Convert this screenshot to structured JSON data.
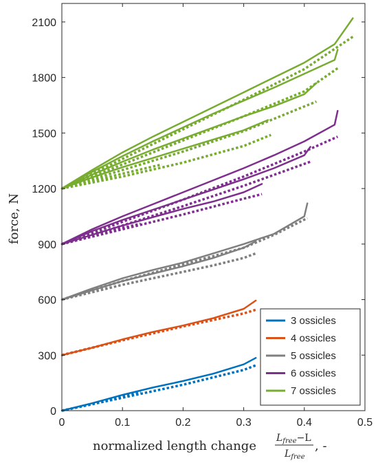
{
  "chart_data": {
    "type": "line",
    "ylabel": "force, N",
    "xlabel_text": "normalized length change",
    "xlabel_frac_num": "L",
    "xlabel_frac_num_sub": "free",
    "xlabel_frac_num_minus": "−L",
    "xlabel_frac_den": "L",
    "xlabel_frac_den_sub": "free",
    "xlabel_suffix": ", -",
    "xlim": [
      0,
      0.5
    ],
    "ylim": [
      0,
      2200
    ],
    "xticks": [
      0,
      0.1,
      0.2,
      0.3,
      0.4,
      0.5
    ],
    "xtick_labels": [
      "0",
      "0.1",
      "0.2",
      "0.3",
      "0.4",
      "0.5"
    ],
    "yticks": [
      0,
      300,
      600,
      900,
      1200,
      1500,
      1800,
      2100
    ],
    "ytick_labels": [
      "0",
      "300",
      "600",
      "900",
      "1200",
      "1500",
      "1800",
      "2100"
    ],
    "legend_position": "bottom-right",
    "series": [
      {
        "name": "3 ossicles",
        "color": "#0072BD",
        "curves": [
          {
            "style": "solid",
            "x": [
              0,
              0.05,
              0.1,
              0.15,
              0.2,
              0.25,
              0.3,
              0.32
            ],
            "y": [
              0,
              40,
              85,
              125,
              160,
              200,
              250,
              285
            ]
          },
          {
            "style": "dotted",
            "x": [
              0,
              0.05,
              0.1,
              0.13
            ],
            "y": [
              0,
              35,
              75,
              100
            ]
          },
          {
            "style": "dotted",
            "x": [
              0,
              0.1,
              0.2,
              0.3,
              0.32
            ],
            "y": [
              0,
              70,
              140,
              220,
              245
            ]
          }
        ]
      },
      {
        "name": "4 ossicles",
        "color": "#D95319",
        "curves": [
          {
            "style": "solid",
            "x": [
              0,
              0.05,
              0.1,
              0.15,
              0.2,
              0.25,
              0.3,
              0.32
            ],
            "y": [
              300,
              340,
              385,
              425,
              460,
              500,
              550,
              595
            ]
          },
          {
            "style": "dotted",
            "x": [
              0,
              0.05,
              0.1,
              0.13
            ],
            "y": [
              300,
              340,
              380,
              405
            ]
          },
          {
            "style": "dotted",
            "x": [
              0,
              0.1,
              0.2,
              0.3,
              0.32
            ],
            "y": [
              300,
              380,
              455,
              525,
              545
            ]
          }
        ]
      },
      {
        "name": "5 ossicles",
        "color": "#7F7F7F",
        "curves": [
          {
            "style": "solid",
            "x": [
              0,
              0.05,
              0.1,
              0.15,
              0.2,
              0.25,
              0.3,
              0.32
            ],
            "y": [
              600,
              650,
              700,
              740,
              780,
              825,
              880,
              915
            ]
          },
          {
            "style": "dotted",
            "x": [
              0,
              0.05,
              0.1,
              0.15,
              0.2,
              0.25,
              0.3,
              0.32
            ],
            "y": [
              600,
              640,
              680,
              715,
              750,
              785,
              825,
              850
            ]
          },
          {
            "style": "solid",
            "x": [
              0,
              0.05,
              0.1,
              0.15,
              0.2,
              0.25,
              0.3,
              0.35,
              0.4,
              0.405
            ],
            "y": [
              600,
              660,
              715,
              760,
              800,
              850,
              900,
              955,
              1050,
              1120
            ]
          },
          {
            "style": "dotted",
            "x": [
              0,
              0.1,
              0.2,
              0.3,
              0.35,
              0.405
            ],
            "y": [
              600,
              700,
              790,
              880,
              950,
              1040
            ]
          }
        ]
      },
      {
        "name": "6 ossicles",
        "color": "#7E2F8E",
        "curves": [
          {
            "style": "solid",
            "x": [
              0,
              0.05,
              0.1,
              0.15,
              0.2,
              0.25,
              0.3,
              0.33
            ],
            "y": [
              900,
              950,
              1000,
              1045,
              1090,
              1130,
              1180,
              1225
            ]
          },
          {
            "style": "dotted",
            "x": [
              0,
              0.1,
              0.2,
              0.3,
              0.33
            ],
            "y": [
              900,
              980,
              1060,
              1145,
              1170
            ]
          },
          {
            "style": "solid",
            "x": [
              0,
              0.05,
              0.1,
              0.15,
              0.2,
              0.25,
              0.3,
              0.35,
              0.4,
              0.41
            ],
            "y": [
              900,
              970,
              1030,
              1085,
              1140,
              1195,
              1250,
              1310,
              1380,
              1425
            ]
          },
          {
            "style": "dotted",
            "x": [
              0,
              0.1,
              0.2,
              0.3,
              0.41
            ],
            "y": [
              900,
              1000,
              1105,
              1215,
              1345
            ]
          },
          {
            "style": "solid",
            "x": [
              0,
              0.05,
              0.1,
              0.15,
              0.2,
              0.25,
              0.3,
              0.35,
              0.4,
              0.45,
              0.455
            ],
            "y": [
              900,
              980,
              1050,
              1115,
              1180,
              1245,
              1310,
              1380,
              1455,
              1545,
              1620
            ]
          },
          {
            "style": "dotted",
            "x": [
              0,
              0.1,
              0.2,
              0.3,
              0.4,
              0.455
            ],
            "y": [
              900,
              1020,
              1140,
              1265,
              1400,
              1480
            ]
          },
          {
            "style": "dotted",
            "x": [
              0,
              0.06,
              0.13
            ],
            "y": [
              900,
              955,
              1010
            ]
          }
        ]
      },
      {
        "name": "7 ossicles",
        "color": "#77AC30",
        "curves": [
          {
            "style": "solid",
            "x": [
              0,
              0.05,
              0.1,
              0.15,
              0.2,
              0.25,
              0.3,
              0.34
            ],
            "y": [
              1200,
              1260,
              1315,
              1365,
              1415,
              1465,
              1515,
              1570
            ]
          },
          {
            "style": "dotted",
            "x": [
              0,
              0.1,
              0.2,
              0.3,
              0.345
            ],
            "y": [
              1200,
              1265,
              1340,
              1430,
              1490
            ]
          },
          {
            "style": "solid",
            "x": [
              0,
              0.05,
              0.1,
              0.15,
              0.2,
              0.25,
              0.3,
              0.35,
              0.4,
              0.42
            ],
            "y": [
              1200,
              1275,
              1345,
              1410,
              1470,
              1530,
              1590,
              1645,
              1710,
              1770
            ]
          },
          {
            "style": "dotted",
            "x": [
              0,
              0.1,
              0.2,
              0.3,
              0.42
            ],
            "y": [
              1200,
              1300,
              1400,
              1510,
              1670
            ]
          },
          {
            "style": "solid",
            "x": [
              0,
              0.05,
              0.1,
              0.15,
              0.2,
              0.25,
              0.3,
              0.35,
              0.4,
              0.45,
              0.455
            ],
            "y": [
              1200,
              1290,
              1375,
              1455,
              1530,
              1605,
              1675,
              1745,
              1820,
              1895,
              1950
            ]
          },
          {
            "style": "dotted",
            "x": [
              0,
              0.1,
              0.2,
              0.3,
              0.4,
              0.455
            ],
            "y": [
              1200,
              1330,
              1460,
              1590,
              1725,
              1850
            ]
          },
          {
            "style": "solid",
            "x": [
              0,
              0.05,
              0.1,
              0.15,
              0.2,
              0.25,
              0.3,
              0.35,
              0.4,
              0.45,
              0.48
            ],
            "y": [
              1200,
              1300,
              1395,
              1480,
              1560,
              1640,
              1720,
              1800,
              1880,
              1980,
              2120
            ]
          },
          {
            "style": "dotted",
            "x": [
              0,
              0.1,
              0.2,
              0.3,
              0.4,
              0.48
            ],
            "y": [
              1200,
              1360,
              1520,
              1680,
              1845,
              2020
            ]
          },
          {
            "style": "dotted",
            "x": [
              0,
              0.08,
              0.165
            ],
            "y": [
              1200,
              1265,
              1330
            ]
          }
        ]
      }
    ]
  }
}
